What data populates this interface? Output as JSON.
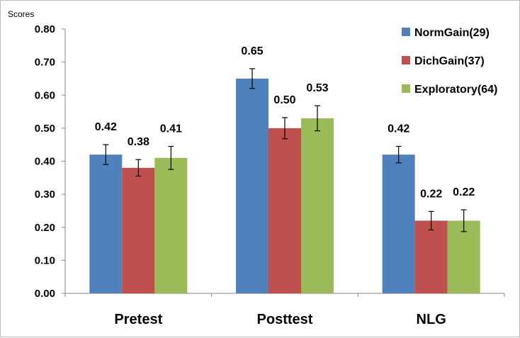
{
  "chart_data": {
    "type": "bar",
    "title": "",
    "xlabel": "",
    "ylabel": "Scores",
    "ylim": [
      0,
      0.8
    ],
    "yticks": [
      "0.00",
      "0.10",
      "0.20",
      "0.30",
      "0.40",
      "0.50",
      "0.60",
      "0.70",
      "0.80"
    ],
    "categories": [
      "Pretest",
      "Posttest",
      "NLG"
    ],
    "legend_position": "top-right",
    "grid": false,
    "series": [
      {
        "name": "NormGain(29)",
        "color": "#4F81BD",
        "values": [
          0.42,
          0.65,
          0.42
        ],
        "value_labels": [
          "0.42",
          "0.65",
          "0.42"
        ],
        "error": [
          0.03,
          0.03,
          0.025
        ]
      },
      {
        "name": "DichGain(37)",
        "color": "#C0504D",
        "values": [
          0.38,
          0.5,
          0.22
        ],
        "value_labels": [
          "0.38",
          "0.50",
          "0.22"
        ],
        "error": [
          0.025,
          0.032,
          0.028
        ]
      },
      {
        "name": "Exploratory(64)",
        "color": "#9BBB59",
        "values": [
          0.41,
          0.53,
          0.22
        ],
        "value_labels": [
          "0.41",
          "0.53",
          "0.22"
        ],
        "error": [
          0.035,
          0.038,
          0.033
        ]
      }
    ]
  }
}
